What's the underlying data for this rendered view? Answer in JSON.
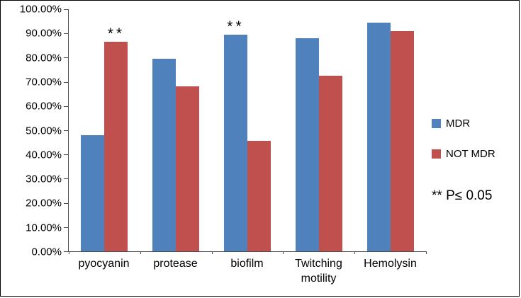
{
  "chart_data": {
    "type": "bar",
    "title": "",
    "categories": [
      "pyocyanin",
      "protease",
      "biofilm",
      "Twitching motility",
      "Hemolysin"
    ],
    "series": [
      {
        "name": "MDR",
        "color": "#4f81bd",
        "values": [
          48.0,
          79.5,
          89.5,
          88.0,
          94.5
        ]
      },
      {
        "name": "NOT MDR",
        "color": "#c0504d",
        "values": [
          86.5,
          68.0,
          45.5,
          72.5,
          91.0
        ]
      }
    ],
    "ylim": [
      0,
      100
    ],
    "ytick_step": 10,
    "ytick_decimals": 2,
    "ytick_suffix": "%",
    "grid": false,
    "legend_position": "right",
    "annotations": [
      {
        "series": "NOT MDR",
        "category": "pyocyanin",
        "text": "**"
      },
      {
        "series": "MDR",
        "category": "biofilm",
        "text": "**"
      }
    ],
    "note": "** P≤ 0.05"
  }
}
